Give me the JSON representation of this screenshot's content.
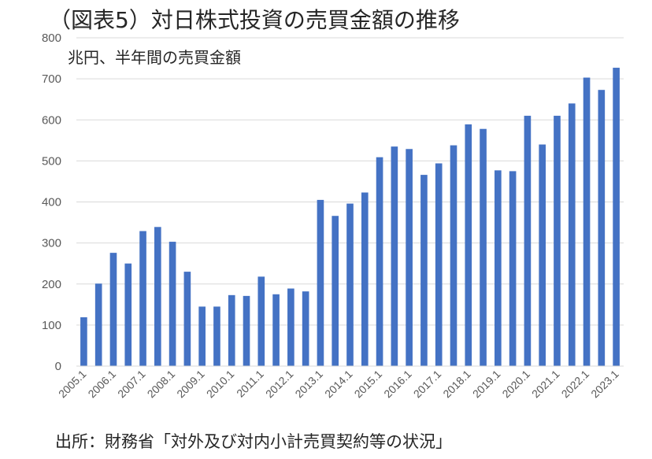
{
  "chart_data": {
    "type": "bar",
    "title": "（図表5）対日株式投資の売買金額の推移",
    "unit_label": "兆円、半年間の売買金額",
    "source": "出所：財務省「対外及び対内小計売買契約等の状況」",
    "color": "#4472c4",
    "ylim": [
      0,
      800
    ],
    "yticks": [
      0,
      100,
      200,
      300,
      400,
      500,
      600,
      700,
      800
    ],
    "grid": true,
    "legend": "none",
    "categories": [
      "2005.1",
      "2005.2",
      "2006.1",
      "2006.2",
      "2007.1",
      "2007.2",
      "2008.1",
      "2008.2",
      "2009.1",
      "2009.2",
      "2010.1",
      "2010.2",
      "2011.1",
      "2011.2",
      "2012.1",
      "2012.2",
      "2013.1",
      "2013.2",
      "2014.1",
      "2014.2",
      "2015.1",
      "2015.2",
      "2016.1",
      "2016.2",
      "2017.1",
      "2017.2",
      "2018.1",
      "2018.2",
      "2019.1",
      "2019.2",
      "2020.1",
      "2020.2",
      "2021.1",
      "2021.2",
      "2022.1",
      "2022.2",
      "2023.1"
    ],
    "xticklabels": [
      "2005.1",
      "2006.1",
      "2007.1",
      "2008.1",
      "2009.1",
      "2010.1",
      "2011.1",
      "2012.1",
      "2013.1",
      "2014.1",
      "2015.1",
      "2016.1",
      "2017.1",
      "2018.1",
      "2019.1",
      "2020.1",
      "2021.1",
      "2022.1",
      "2023.1"
    ],
    "values": [
      119,
      201,
      276,
      250,
      329,
      339,
      303,
      230,
      145,
      145,
      173,
      171,
      218,
      175,
      189,
      182,
      405,
      366,
      396,
      423,
      509,
      535,
      529,
      466,
      494,
      538,
      589,
      578,
      477,
      475,
      610,
      540,
      610,
      640,
      703,
      673,
      727
    ]
  }
}
